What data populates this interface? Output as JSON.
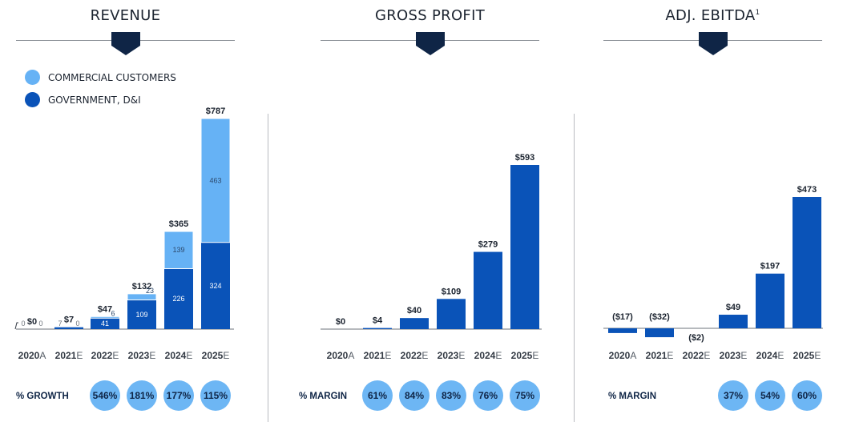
{
  "colors": {
    "government": "#0a53b8",
    "commercial": "#66b2f5",
    "badge": "#6db6f4",
    "header_triangle": "#0f2546"
  },
  "legend": {
    "commercial": "COMMERCIAL CUSTOMERS",
    "government": "GOVERNMENT, D&I"
  },
  "chart_data": [
    {
      "type": "bar",
      "title": "REVENUE",
      "stacked": true,
      "categories": [
        {
          "year": "2020",
          "suffix": "A"
        },
        {
          "year": "2021",
          "suffix": "E"
        },
        {
          "year": "2022",
          "suffix": "E"
        },
        {
          "year": "2023",
          "suffix": "E"
        },
        {
          "year": "2024",
          "suffix": "E"
        },
        {
          "year": "2025",
          "suffix": "E"
        }
      ],
      "series": [
        {
          "name": "GOVERNMENT, D&I",
          "values": [
            0,
            7,
            41,
            109,
            226,
            324
          ],
          "labels": [
            "0",
            "7",
            "41",
            "109",
            "226",
            "324"
          ]
        },
        {
          "name": "COMMERCIAL CUSTOMERS",
          "values": [
            0,
            0,
            6,
            23,
            139,
            463
          ],
          "labels": [
            "0",
            "0",
            "6",
            "23",
            "139",
            "463"
          ]
        }
      ],
      "totals": [
        "$0",
        "$7",
        "$47",
        "$132",
        "$365",
        "$787"
      ],
      "row_label": "% GROWTH",
      "row_values": [
        "",
        "",
        "546%",
        "181%",
        "177%",
        "115%"
      ]
    },
    {
      "type": "bar",
      "title": "GROSS PROFIT",
      "categories": [
        {
          "year": "2020",
          "suffix": "A"
        },
        {
          "year": "2021",
          "suffix": "E"
        },
        {
          "year": "2022",
          "suffix": "E"
        },
        {
          "year": "2023",
          "suffix": "E"
        },
        {
          "year": "2024",
          "suffix": "E"
        },
        {
          "year": "2025",
          "suffix": "E"
        }
      ],
      "values": [
        0,
        4,
        40,
        109,
        279,
        593
      ],
      "labels": [
        "$0",
        "$4",
        "$40",
        "$109",
        "$279",
        "$593"
      ],
      "row_label": "% MARGIN",
      "row_values": [
        "",
        "61%",
        "84%",
        "83%",
        "76%",
        "75%"
      ]
    },
    {
      "type": "bar",
      "title": "ADJ. EBITDA",
      "title_sup": "1",
      "categories": [
        {
          "year": "2020",
          "suffix": "A"
        },
        {
          "year": "2021",
          "suffix": "E"
        },
        {
          "year": "2022",
          "suffix": "E"
        },
        {
          "year": "2023",
          "suffix": "E"
        },
        {
          "year": "2024",
          "suffix": "E"
        },
        {
          "year": "2025",
          "suffix": "E"
        }
      ],
      "values": [
        -17,
        -32,
        -2,
        49,
        197,
        473
      ],
      "labels": [
        "($17)",
        "($32)",
        "($2)",
        "$49",
        "$197",
        "$473"
      ],
      "row_label": "% MARGIN",
      "row_values": [
        "",
        "",
        "",
        "37%",
        "54%",
        "60%"
      ]
    }
  ]
}
